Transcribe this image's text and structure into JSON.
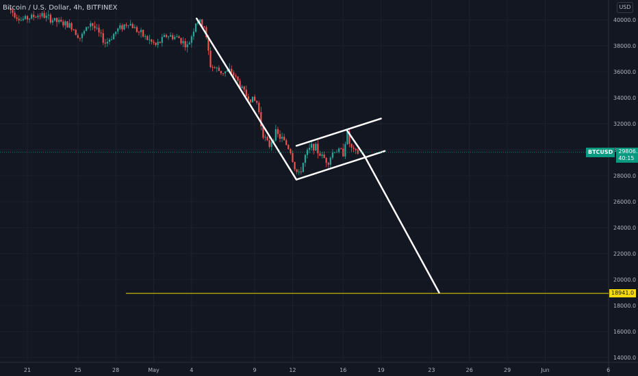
{
  "header": {
    "title": "Bitcoin / U.S. Dollar, 4h, BITFINEX",
    "currency": "USD"
  },
  "current_price": {
    "symbol": "BTCUSD",
    "price": "29806.0",
    "countdown": "40:15",
    "value": 29806
  },
  "target_level": {
    "label": "18941.0",
    "value": 18941
  },
  "colors": {
    "background": "#131722",
    "grid": "#1e222d",
    "axis_text": "#b2b5be",
    "up_candle": "#26a69a",
    "down_candle": "#ef5350",
    "drawing": "#ffffff",
    "target_line": "#f5d90a",
    "price_tag": "#089981"
  },
  "chart_data": {
    "type": "candlestick",
    "title": "Bitcoin / U.S. Dollar, 4h, BITFINEX",
    "ylim": [
      13800,
      42000
    ],
    "grid": true,
    "yticks": [
      40000,
      38000,
      36000,
      34000,
      32000,
      30000,
      28000,
      26000,
      24000,
      22000,
      20000,
      18000,
      16000,
      14000
    ],
    "ytick_labels": [
      "40000.0",
      "38000.0",
      "36000.0",
      "34000.0",
      "32000.0",
      "30000.0",
      "28000.0",
      "26000.0",
      "24000.0",
      "22000.0",
      "20000.0",
      "18000.0",
      "16000.0",
      "14000.0"
    ],
    "x_ticks": [
      {
        "label": "21",
        "day": 0
      },
      {
        "label": "25",
        "day": 4
      },
      {
        "label": "28",
        "day": 7
      },
      {
        "label": "May",
        "day": 10
      },
      {
        "label": "4",
        "day": 13
      },
      {
        "label": "9",
        "day": 18
      },
      {
        "label": "12",
        "day": 21
      },
      {
        "label": "16",
        "day": 25
      },
      {
        "label": "19",
        "day": 28
      },
      {
        "label": "23",
        "day": 32
      },
      {
        "label": "26",
        "day": 35
      },
      {
        "label": "29",
        "day": 38
      },
      {
        "label": "Jun",
        "day": 41
      },
      {
        "label": "6",
        "day": 46
      }
    ],
    "price_path": [
      {
        "day": -1.5,
        "price": 40900
      },
      {
        "day": -0.5,
        "price": 40000
      },
      {
        "day": 1,
        "price": 40400
      },
      {
        "day": 2.5,
        "price": 39800
      },
      {
        "day": 3.5,
        "price": 39500
      },
      {
        "day": 4.2,
        "price": 38600
      },
      {
        "day": 5,
        "price": 39800
      },
      {
        "day": 6.2,
        "price": 38200
      },
      {
        "day": 7.2,
        "price": 39300
      },
      {
        "day": 8,
        "price": 39800
      },
      {
        "day": 9,
        "price": 38900
      },
      {
        "day": 10.2,
        "price": 38000
      },
      {
        "day": 11,
        "price": 38800
      },
      {
        "day": 12,
        "price": 38600
      },
      {
        "day": 12.7,
        "price": 37900
      },
      {
        "day": 13.4,
        "price": 40000
      },
      {
        "day": 14,
        "price": 39500
      },
      {
        "day": 14.5,
        "price": 36500
      },
      {
        "day": 15.3,
        "price": 36000
      },
      {
        "day": 16.2,
        "price": 36000
      },
      {
        "day": 17.3,
        "price": 34200
      },
      {
        "day": 18.2,
        "price": 33600
      },
      {
        "day": 18.6,
        "price": 31400
      },
      {
        "day": 19.1,
        "price": 30200
      },
      {
        "day": 19.6,
        "price": 31300
      },
      {
        "day": 20.2,
        "price": 30800
      },
      {
        "day": 20.8,
        "price": 30000
      },
      {
        "day": 21.2,
        "price": 28500
      },
      {
        "day": 21.5,
        "price": 28000
      },
      {
        "day": 22,
        "price": 29500
      },
      {
        "day": 22.6,
        "price": 30400
      },
      {
        "day": 23.2,
        "price": 29600
      },
      {
        "day": 23.8,
        "price": 29100
      },
      {
        "day": 24.3,
        "price": 30000
      },
      {
        "day": 25,
        "price": 29800
      },
      {
        "day": 25.3,
        "price": 31300
      },
      {
        "day": 25.6,
        "price": 30100
      },
      {
        "day": 26,
        "price": 29700
      },
      {
        "day": 26.3,
        "price": 29806
      }
    ],
    "drawings": [
      {
        "name": "flagpole",
        "from": {
          "day": 13.4,
          "price": 40100
        },
        "to": {
          "day": 21.3,
          "price": 27700
        }
      },
      {
        "name": "flag-upper",
        "from": {
          "day": 21.3,
          "price": 30300
        },
        "to": {
          "day": 28,
          "price": 32400
        }
      },
      {
        "name": "flag-lower",
        "from": {
          "day": 21.3,
          "price": 27700
        },
        "to": {
          "day": 28.3,
          "price": 29900
        }
      },
      {
        "name": "flag-right-edge",
        "from": {
          "day": 25.3,
          "price": 31500
        },
        "to": {
          "day": 26.7,
          "price": 29500
        }
      },
      {
        "name": "projection",
        "from": {
          "day": 26.7,
          "price": 29500
        },
        "to": {
          "day": 32.6,
          "price": 19000
        }
      }
    ],
    "horizontal_line": {
      "value": 18941,
      "label": "18941.0",
      "from_day": 7.8
    }
  }
}
